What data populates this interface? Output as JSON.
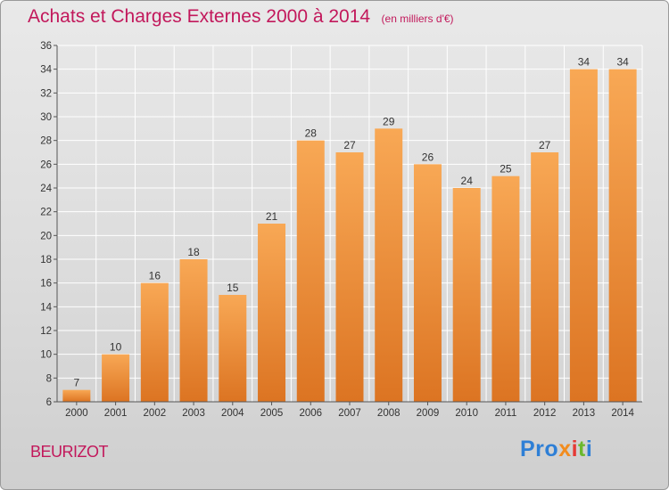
{
  "header": {
    "title": "Achats et Charges Externes 2000 à 2014",
    "unit": "(en milliers d'€)"
  },
  "footer": {
    "commune": "BEURIZOT",
    "logo": [
      "Pro",
      "x",
      "i",
      "t",
      "i"
    ]
  },
  "colors": {
    "title": "#c2185b",
    "bar_light": "#f8a855",
    "bar_dark": "#dc7422",
    "grid": "#ffffff",
    "background": "#e3e3e3"
  },
  "chart_data": {
    "type": "bar",
    "categories": [
      "2000",
      "2001",
      "2002",
      "2003",
      "2004",
      "2005",
      "2006",
      "2007",
      "2008",
      "2009",
      "2010",
      "2011",
      "2012",
      "2013",
      "2014"
    ],
    "values": [
      7,
      10,
      16,
      18,
      15,
      21,
      28,
      27,
      29,
      26,
      24,
      25,
      27,
      34,
      34
    ],
    "ylim": [
      6,
      36
    ],
    "yticks": [
      6,
      8,
      10,
      12,
      14,
      16,
      18,
      20,
      22,
      24,
      26,
      28,
      30,
      32,
      34,
      36
    ],
    "grid": true,
    "data_labels": true
  }
}
